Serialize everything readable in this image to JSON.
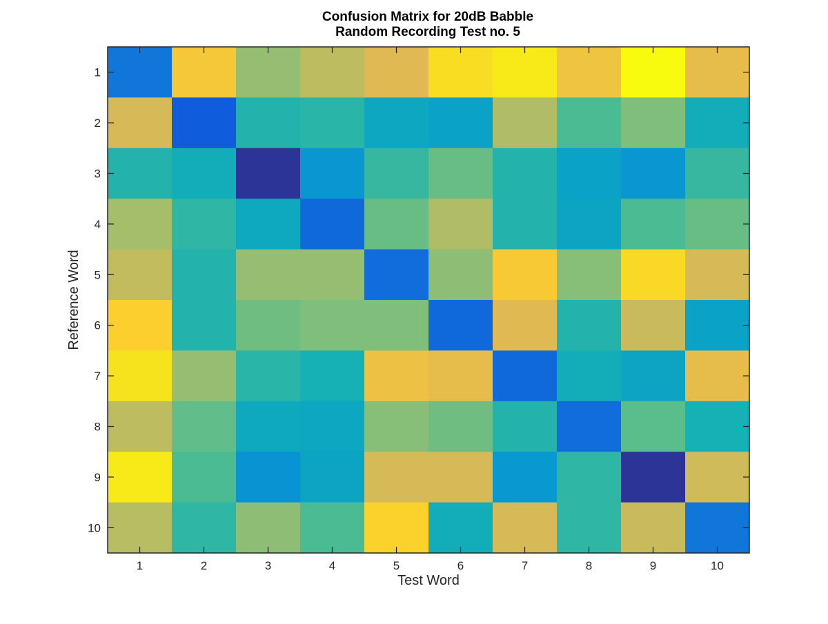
{
  "chart_data": {
    "type": "heatmap",
    "title_lines": [
      "Confusion Matrix for 20dB Babble",
      "Random Recording Test no. 5"
    ],
    "xlabel": "Test Word",
    "ylabel": "Reference Word",
    "x_categories": [
      "1",
      "2",
      "3",
      "4",
      "5",
      "6",
      "7",
      "8",
      "9",
      "10"
    ],
    "y_categories": [
      "1",
      "2",
      "3",
      "4",
      "5",
      "6",
      "7",
      "8",
      "9",
      "10"
    ],
    "colormap": "parula",
    "value_range": [
      0,
      1
    ],
    "grid": false,
    "colorbar": false,
    "values": [
      [
        0.18,
        0.77,
        0.58,
        0.64,
        0.7,
        0.87,
        0.93,
        0.75,
        1.0,
        0.72
      ],
      [
        0.68,
        0.1,
        0.42,
        0.43,
        0.35,
        0.33,
        0.62,
        0.48,
        0.55,
        0.38
      ],
      [
        0.42,
        0.38,
        0.02,
        0.28,
        0.45,
        0.52,
        0.42,
        0.33,
        0.28,
        0.45
      ],
      [
        0.6,
        0.44,
        0.36,
        0.14,
        0.52,
        0.62,
        0.42,
        0.34,
        0.48,
        0.52
      ],
      [
        0.65,
        0.42,
        0.58,
        0.58,
        0.15,
        0.57,
        0.78,
        0.56,
        0.85,
        0.68
      ],
      [
        0.8,
        0.42,
        0.53,
        0.55,
        0.55,
        0.14,
        0.7,
        0.42,
        0.66,
        0.33
      ],
      [
        0.9,
        0.58,
        0.43,
        0.4,
        0.74,
        0.72,
        0.14,
        0.38,
        0.34,
        0.72
      ],
      [
        0.64,
        0.51,
        0.36,
        0.35,
        0.56,
        0.53,
        0.42,
        0.15,
        0.5,
        0.4
      ],
      [
        0.93,
        0.48,
        0.27,
        0.34,
        0.68,
        0.68,
        0.29,
        0.44,
        0.02,
        0.67
      ],
      [
        0.63,
        0.44,
        0.57,
        0.48,
        0.82,
        0.38,
        0.68,
        0.44,
        0.66,
        0.18
      ]
    ]
  }
}
